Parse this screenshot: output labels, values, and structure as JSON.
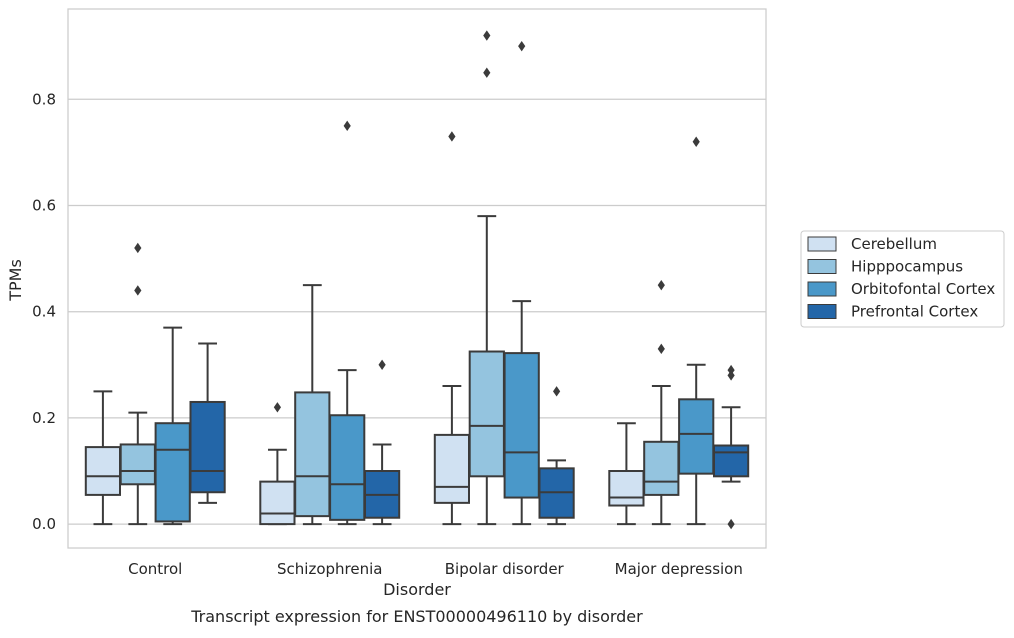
{
  "chart_data": {
    "type": "boxplot",
    "caption": "Transcript expression for ENST00000496110 by disorder",
    "xlabel": "Disorder",
    "ylabel": "TPMs",
    "ylim": [
      -0.045,
      0.97
    ],
    "yticks": [
      0.0,
      0.2,
      0.4,
      0.6,
      0.8
    ],
    "ytick_labels": [
      "0.0",
      "0.2",
      "0.4",
      "0.6",
      "0.8"
    ],
    "grid": "y",
    "legend_position": "right",
    "categories": [
      "Control",
      "Schizophrenia",
      "Bipolar disorder",
      "Major depression"
    ],
    "series": [
      {
        "name": "Cerebellum",
        "color": "#d0e1f2",
        "boxes": [
          {
            "whisker_low": 0.0,
            "q1": 0.055,
            "median": 0.09,
            "q3": 0.145,
            "whisker_high": 0.25,
            "outliers": []
          },
          {
            "whisker_low": 0.0,
            "q1": 0.0,
            "median": 0.02,
            "q3": 0.08,
            "whisker_high": 0.14,
            "outliers": [
              0.22
            ]
          },
          {
            "whisker_low": 0.0,
            "q1": 0.04,
            "median": 0.07,
            "q3": 0.168,
            "whisker_high": 0.26,
            "outliers": [
              0.73
            ]
          },
          {
            "whisker_low": 0.0,
            "q1": 0.035,
            "median": 0.05,
            "q3": 0.1,
            "whisker_high": 0.19,
            "outliers": []
          }
        ]
      },
      {
        "name": "Hipppocampus",
        "color": "#94c4df",
        "boxes": [
          {
            "whisker_low": 0.0,
            "q1": 0.075,
            "median": 0.1,
            "q3": 0.15,
            "whisker_high": 0.21,
            "outliers": [
              0.52,
              0.44
            ]
          },
          {
            "whisker_low": 0.0,
            "q1": 0.015,
            "median": 0.09,
            "q3": 0.248,
            "whisker_high": 0.45,
            "outliers": []
          },
          {
            "whisker_low": 0.0,
            "q1": 0.09,
            "median": 0.185,
            "q3": 0.325,
            "whisker_high": 0.58,
            "outliers": [
              0.85,
              0.92
            ]
          },
          {
            "whisker_low": 0.0,
            "q1": 0.055,
            "median": 0.08,
            "q3": 0.155,
            "whisker_high": 0.26,
            "outliers": [
              0.45,
              0.33
            ]
          }
        ]
      },
      {
        "name": "Orbitofontal Cortex",
        "color": "#4a98c9",
        "boxes": [
          {
            "whisker_low": 0.0,
            "q1": 0.005,
            "median": 0.14,
            "q3": 0.19,
            "whisker_high": 0.37,
            "outliers": []
          },
          {
            "whisker_low": 0.0,
            "q1": 0.008,
            "median": 0.075,
            "q3": 0.205,
            "whisker_high": 0.29,
            "outliers": [
              0.75
            ]
          },
          {
            "whisker_low": 0.0,
            "q1": 0.05,
            "median": 0.135,
            "q3": 0.322,
            "whisker_high": 0.42,
            "outliers": [
              0.9
            ]
          },
          {
            "whisker_low": 0.0,
            "q1": 0.095,
            "median": 0.17,
            "q3": 0.235,
            "whisker_high": 0.3,
            "outliers": [
              0.72
            ]
          }
        ]
      },
      {
        "name": "Prefrontal Cortex",
        "color": "#2366a8",
        "boxes": [
          {
            "whisker_low": 0.04,
            "q1": 0.06,
            "median": 0.1,
            "q3": 0.23,
            "whisker_high": 0.34,
            "outliers": []
          },
          {
            "whisker_low": 0.0,
            "q1": 0.012,
            "median": 0.055,
            "q3": 0.1,
            "whisker_high": 0.15,
            "outliers": [
              0.3
            ]
          },
          {
            "whisker_low": 0.0,
            "q1": 0.012,
            "median": 0.06,
            "q3": 0.105,
            "whisker_high": 0.12,
            "outliers": [
              0.25
            ]
          },
          {
            "whisker_low": 0.08,
            "q1": 0.09,
            "median": 0.135,
            "q3": 0.148,
            "whisker_high": 0.22,
            "outliers": [
              0.29,
              0.28,
              0.0
            ]
          }
        ]
      }
    ]
  }
}
